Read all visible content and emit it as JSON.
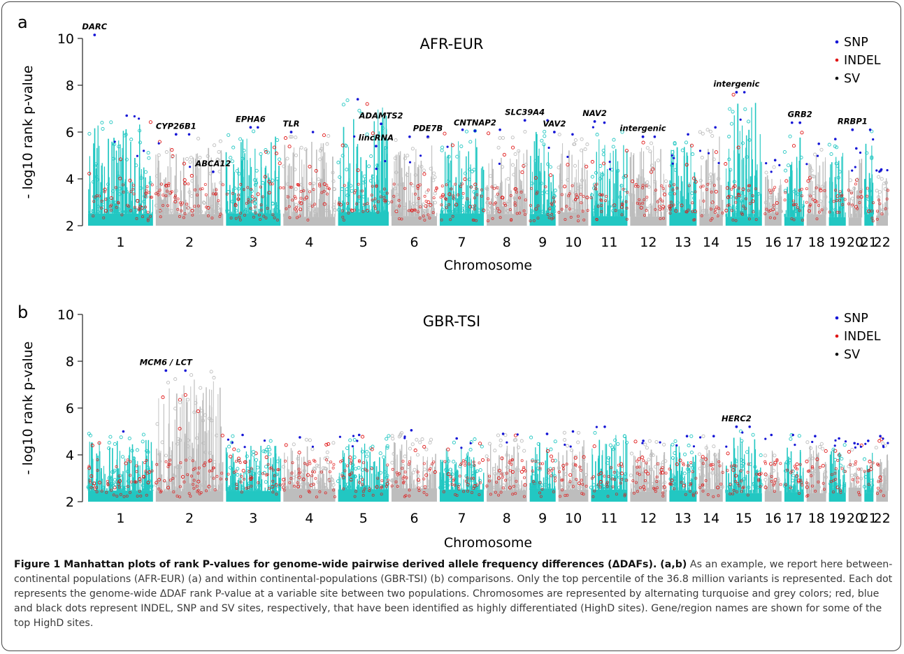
{
  "figure": {
    "caption_lead": "Figure 1 Manhattan plots of rank P-values for genome-wide pairwise derived allele frequency differences (ΔDAFs). (a,b)",
    "caption_body": "As an example, we report here between-continental populations (AFR-EUR) (a) and within continental-populations (GBR-TSI) (b) comparisons. Only the top percentile of the 36.8 million variants is represented. Each dot represents the genome-wide ΔDAF rank P-value at a variable site between two populations. Chromosomes are represented by alternating turquoise and grey colors; red, blue and black dots represent INDEL, SNP and SV sites, respectively, that have been identified as highly differentiated (HighD sites). Gene/region names are shown for some of the top HighD sites."
  },
  "colors": {
    "turquoise": "#22c7c2",
    "grey": "#bdbdbd",
    "snp": "#1515d6",
    "indel": "#e01515",
    "sv": "#111111"
  },
  "chart_data": [
    {
      "type": "scatter",
      "panel_letter": "a",
      "title": "AFR-EUR",
      "xlabel": "Chromosome",
      "ylabel": "- log10 rank p-value",
      "ylim": [
        2,
        10
      ],
      "yticks": [
        2,
        4,
        6,
        8,
        10
      ],
      "legend": {
        "placement": "top-right",
        "entries": [
          "SNP",
          "INDEL",
          "SV"
        ]
      },
      "chromosomes": [
        "1",
        "2",
        "3",
        "4",
        "5",
        "6",
        "7",
        "8",
        "9",
        "10",
        "11",
        "12",
        "13",
        "14",
        "15",
        "16",
        "17",
        "18",
        "19",
        "20",
        "21",
        "22"
      ],
      "chromosome_peak": [
        6.7,
        5.9,
        6.2,
        6.0,
        7.4,
        5.8,
        6.1,
        6.1,
        6.5,
        5.9,
        6.4,
        5.8,
        5.9,
        6.2,
        7.7,
        4.8,
        6.4,
        5.5,
        5.7,
        5.3,
        6.1,
        4.4
      ],
      "annotations": [
        {
          "label": "DARC",
          "chromosome": "1",
          "pos": 0.1,
          "value": 10.15
        },
        {
          "label": "CYP26B1",
          "chromosome": "2",
          "pos": 0.3,
          "value": 5.9
        },
        {
          "label": "ABCA12",
          "chromosome": "2",
          "pos": 0.85,
          "value": 4.3
        },
        {
          "label": "EPHA6",
          "chromosome": "3",
          "pos": 0.45,
          "value": 6.2
        },
        {
          "label": "TLR",
          "chromosome": "4",
          "pos": 0.15,
          "value": 6.0
        },
        {
          "label": "ADAMTS2",
          "chromosome": "5",
          "pos": 0.85,
          "value": 6.35
        },
        {
          "label": "lincRNA",
          "chromosome": "5",
          "pos": 0.75,
          "value": 5.4
        },
        {
          "label": "PDE7B",
          "chromosome": "6",
          "pos": 0.8,
          "value": 5.8
        },
        {
          "label": "CNTNAP2",
          "chromosome": "7",
          "pos": 0.8,
          "value": 6.05
        },
        {
          "label": "SLC39A4",
          "chromosome": "8",
          "pos": 0.95,
          "value": 6.5
        },
        {
          "label": "VAV2",
          "chromosome": "9",
          "pos": 0.95,
          "value": 6.0
        },
        {
          "label": "NAV2",
          "chromosome": "11",
          "pos": 0.1,
          "value": 6.45
        },
        {
          "label": "intergenic",
          "chromosome": "12",
          "pos": 0.35,
          "value": 5.8
        },
        {
          "label": "intergenic",
          "chromosome": "15",
          "pos": 0.3,
          "value": 7.7
        },
        {
          "label": "GRB2",
          "chromosome": "17",
          "pos": 0.8,
          "value": 6.4
        },
        {
          "label": "RRBP1",
          "chromosome": "20",
          "pos": 0.3,
          "value": 6.1
        }
      ]
    },
    {
      "type": "scatter",
      "panel_letter": "b",
      "title": "GBR-TSI",
      "xlabel": "Chromosome",
      "ylabel": "- log10 rank p-value",
      "ylim": [
        2,
        10
      ],
      "yticks": [
        2,
        4,
        6,
        8,
        10
      ],
      "legend": {
        "placement": "top-right",
        "entries": [
          "SNP",
          "INDEL",
          "SV"
        ]
      },
      "chromosomes": [
        "1",
        "2",
        "3",
        "4",
        "5",
        "6",
        "7",
        "8",
        "9",
        "10",
        "11",
        "12",
        "13",
        "14",
        "15",
        "16",
        "17",
        "18",
        "19",
        "20",
        "21",
        "22"
      ],
      "chromosome_peak": [
        5.0,
        7.6,
        4.85,
        4.75,
        4.85,
        5.05,
        4.7,
        4.9,
        4.9,
        5.0,
        5.2,
        4.6,
        4.8,
        4.8,
        5.2,
        4.85,
        4.85,
        4.8,
        4.7,
        4.5,
        4.6,
        4.8
      ],
      "annotations": [
        {
          "label": "MCM6 / LCT",
          "chromosome": "2",
          "pos": 0.15,
          "value": 7.6
        },
        {
          "label": "HERC2",
          "chromosome": "15",
          "pos": 0.3,
          "value": 5.2
        }
      ]
    }
  ]
}
